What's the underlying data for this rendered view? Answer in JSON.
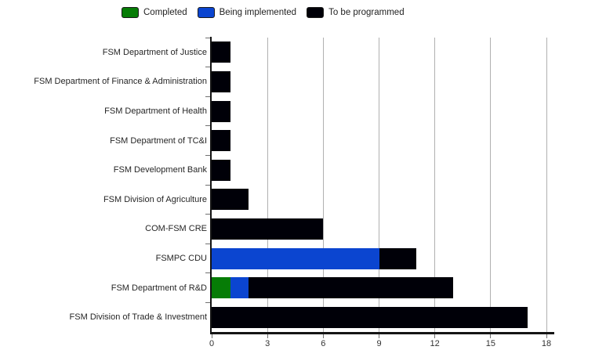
{
  "legend": {
    "items": [
      {
        "label": "Completed",
        "color": "#067c06"
      },
      {
        "label": "Being implemented",
        "color": "#0b45d0"
      },
      {
        "label": "To be programmed",
        "color": "#000008"
      }
    ]
  },
  "chart_data": {
    "type": "bar",
    "orientation": "horizontal",
    "stacked": true,
    "title": "",
    "xlabel": "",
    "ylabel": "",
    "xlim": [
      0,
      18
    ],
    "xticks": [
      0,
      3,
      6,
      9,
      12,
      15,
      18
    ],
    "grid": "vertical",
    "legend_position": "top-center",
    "categories": [
      "FSM Department of Justice",
      "FSM Department of Finance & Administration",
      "FSM Department of Health",
      "FSM Department of TC&I",
      "FSM Development Bank",
      "FSM Division of Agriculture",
      "COM-FSM CRE",
      "FSMPC CDU",
      "FSM Department of R&D",
      "FSM Division of Trade & Investment"
    ],
    "series": [
      {
        "name": "Completed",
        "color": "#067c06",
        "values": [
          0,
          0,
          0,
          0,
          0,
          0,
          0,
          0,
          1,
          0
        ]
      },
      {
        "name": "Being implemented",
        "color": "#0b45d0",
        "values": [
          0,
          0,
          0,
          0,
          0,
          0,
          0,
          9,
          1,
          0
        ]
      },
      {
        "name": "To be programmed",
        "color": "#000008",
        "values": [
          1,
          1,
          1,
          1,
          1,
          2,
          6,
          2,
          11,
          17
        ]
      }
    ]
  },
  "colors": {
    "grid": "#b0b0b0",
    "axis": "#141414",
    "tick": "#707070",
    "text": "#262626"
  }
}
